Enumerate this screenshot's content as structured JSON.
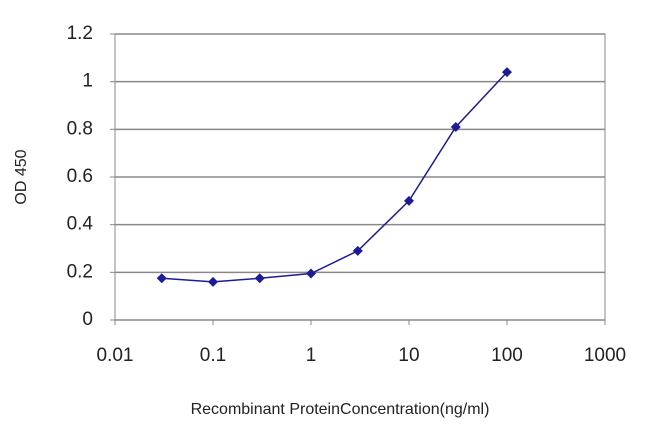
{
  "chart_data": {
    "type": "line",
    "x_label": "Recombinant ProteinConcentration(ng/ml)",
    "y_label": "OD 450",
    "x": [
      0.03,
      0.1,
      0.3,
      1,
      3,
      10,
      30,
      100
    ],
    "series": [
      {
        "color": "#1c1c96",
        "values": [
          0.175,
          0.16,
          0.175,
          0.195,
          0.29,
          0.5,
          0.81,
          1.04
        ]
      }
    ],
    "xscale": "log",
    "xlim": [
      0.01,
      1000
    ],
    "xticks": [
      0.01,
      0.1,
      1,
      10,
      100,
      1000
    ],
    "ylim": [
      0,
      1.2
    ],
    "yticks": [
      0,
      0.2,
      0.4,
      0.6,
      0.8,
      1,
      1.2
    ],
    "grid": true
  }
}
